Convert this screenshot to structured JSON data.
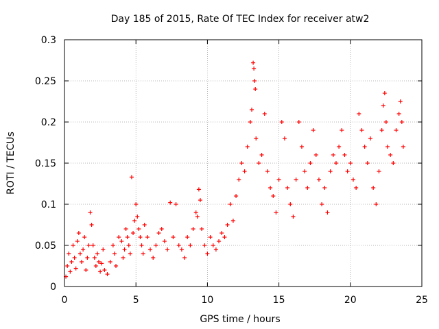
{
  "chart_data": {
    "type": "scatter",
    "title": "Day 185 of 2015, Rate Of TEC Index for receiver atw2",
    "xlabel": "GPS time / hours",
    "ylabel": "ROTI / TECUs",
    "xlim": [
      0,
      25
    ],
    "ylim": [
      0,
      0.3
    ],
    "grid": true,
    "xticks": [
      0,
      5,
      10,
      15,
      20,
      25
    ],
    "yticks": [
      0,
      0.05,
      0.1,
      0.15,
      0.2,
      0.25,
      0.3
    ],
    "xtick_labels": [
      "0",
      "5",
      "10",
      "15",
      "20",
      "25"
    ],
    "ytick_labels": [
      "0",
      "0.05",
      "0.1",
      "0.15",
      "0.2",
      "0.25",
      "0.3"
    ],
    "marker": "+",
    "series": [
      {
        "name": "ROTI",
        "color": "#ff0000",
        "points": [
          [
            0.1,
            0.012
          ],
          [
            0.2,
            0.025
          ],
          [
            0.3,
            0.04
          ],
          [
            0.4,
            0.018
          ],
          [
            0.5,
            0.03
          ],
          [
            0.6,
            0.05
          ],
          [
            0.7,
            0.035
          ],
          [
            0.8,
            0.022
          ],
          [
            0.9,
            0.055
          ],
          [
            1.0,
            0.065
          ],
          [
            1.1,
            0.04
          ],
          [
            1.2,
            0.03
          ],
          [
            1.3,
            0.045
          ],
          [
            1.4,
            0.06
          ],
          [
            1.5,
            0.02
          ],
          [
            1.6,
            0.035
          ],
          [
            1.7,
            0.05
          ],
          [
            1.8,
            0.09
          ],
          [
            1.9,
            0.075
          ],
          [
            2.0,
            0.05
          ],
          [
            2.1,
            0.035
          ],
          [
            2.2,
            0.025
          ],
          [
            2.3,
            0.04
          ],
          [
            2.4,
            0.03
          ],
          [
            2.5,
            0.018
          ],
          [
            2.6,
            0.028
          ],
          [
            2.7,
            0.045
          ],
          [
            2.8,
            0.02
          ],
          [
            3.0,
            0.015
          ],
          [
            3.2,
            0.03
          ],
          [
            3.4,
            0.05
          ],
          [
            3.5,
            0.04
          ],
          [
            3.6,
            0.025
          ],
          [
            3.8,
            0.06
          ],
          [
            4.0,
            0.055
          ],
          [
            4.1,
            0.035
          ],
          [
            4.2,
            0.045
          ],
          [
            4.3,
            0.07
          ],
          [
            4.4,
            0.06
          ],
          [
            4.5,
            0.05
          ],
          [
            4.6,
            0.04
          ],
          [
            4.7,
            0.133
          ],
          [
            4.8,
            0.065
          ],
          [
            4.9,
            0.08
          ],
          [
            5.0,
            0.1
          ],
          [
            5.1,
            0.085
          ],
          [
            5.2,
            0.07
          ],
          [
            5.3,
            0.06
          ],
          [
            5.4,
            0.05
          ],
          [
            5.5,
            0.04
          ],
          [
            5.6,
            0.075
          ],
          [
            5.8,
            0.06
          ],
          [
            6.0,
            0.045
          ],
          [
            6.2,
            0.035
          ],
          [
            6.4,
            0.05
          ],
          [
            6.6,
            0.065
          ],
          [
            6.8,
            0.07
          ],
          [
            7.0,
            0.055
          ],
          [
            7.2,
            0.045
          ],
          [
            7.4,
            0.102
          ],
          [
            7.6,
            0.06
          ],
          [
            7.8,
            0.1
          ],
          [
            8.0,
            0.05
          ],
          [
            8.2,
            0.045
          ],
          [
            8.4,
            0.035
          ],
          [
            8.6,
            0.06
          ],
          [
            8.8,
            0.05
          ],
          [
            9.0,
            0.07
          ],
          [
            9.2,
            0.09
          ],
          [
            9.3,
            0.085
          ],
          [
            9.4,
            0.118
          ],
          [
            9.5,
            0.105
          ],
          [
            9.6,
            0.07
          ],
          [
            9.8,
            0.05
          ],
          [
            10.0,
            0.04
          ],
          [
            10.2,
            0.06
          ],
          [
            10.4,
            0.05
          ],
          [
            10.6,
            0.045
          ],
          [
            10.8,
            0.055
          ],
          [
            11.0,
            0.065
          ],
          [
            11.2,
            0.06
          ],
          [
            11.4,
            0.075
          ],
          [
            11.6,
            0.1
          ],
          [
            11.8,
            0.08
          ],
          [
            12.0,
            0.11
          ],
          [
            12.2,
            0.13
          ],
          [
            12.4,
            0.15
          ],
          [
            12.6,
            0.14
          ],
          [
            12.8,
            0.17
          ],
          [
            13.0,
            0.2
          ],
          [
            13.1,
            0.215
          ],
          [
            13.2,
            0.272
          ],
          [
            13.25,
            0.265
          ],
          [
            13.3,
            0.25
          ],
          [
            13.35,
            0.24
          ],
          [
            13.4,
            0.18
          ],
          [
            13.6,
            0.15
          ],
          [
            13.8,
            0.16
          ],
          [
            14.0,
            0.21
          ],
          [
            14.2,
            0.14
          ],
          [
            14.4,
            0.12
          ],
          [
            14.6,
            0.11
          ],
          [
            14.8,
            0.09
          ],
          [
            15.0,
            0.13
          ],
          [
            15.2,
            0.2
          ],
          [
            15.4,
            0.18
          ],
          [
            15.6,
            0.12
          ],
          [
            15.8,
            0.1
          ],
          [
            16.0,
            0.085
          ],
          [
            16.2,
            0.13
          ],
          [
            16.4,
            0.2
          ],
          [
            16.6,
            0.17
          ],
          [
            16.8,
            0.14
          ],
          [
            17.0,
            0.12
          ],
          [
            17.2,
            0.15
          ],
          [
            17.4,
            0.19
          ],
          [
            17.6,
            0.16
          ],
          [
            17.8,
            0.13
          ],
          [
            18.0,
            0.1
          ],
          [
            18.2,
            0.12
          ],
          [
            18.4,
            0.09
          ],
          [
            18.6,
            0.14
          ],
          [
            18.8,
            0.16
          ],
          [
            19.0,
            0.15
          ],
          [
            19.2,
            0.17
          ],
          [
            19.4,
            0.19
          ],
          [
            19.6,
            0.16
          ],
          [
            19.8,
            0.14
          ],
          [
            20.0,
            0.15
          ],
          [
            20.2,
            0.13
          ],
          [
            20.4,
            0.12
          ],
          [
            20.6,
            0.21
          ],
          [
            20.8,
            0.19
          ],
          [
            21.0,
            0.17
          ],
          [
            21.2,
            0.15
          ],
          [
            21.4,
            0.18
          ],
          [
            21.6,
            0.12
          ],
          [
            21.8,
            0.1
          ],
          [
            22.0,
            0.14
          ],
          [
            22.2,
            0.19
          ],
          [
            22.3,
            0.22
          ],
          [
            22.4,
            0.235
          ],
          [
            22.5,
            0.2
          ],
          [
            22.6,
            0.17
          ],
          [
            22.8,
            0.16
          ],
          [
            23.0,
            0.15
          ],
          [
            23.2,
            0.19
          ],
          [
            23.4,
            0.21
          ],
          [
            23.5,
            0.225
          ],
          [
            23.6,
            0.2
          ],
          [
            23.7,
            0.17
          ]
        ]
      }
    ]
  }
}
